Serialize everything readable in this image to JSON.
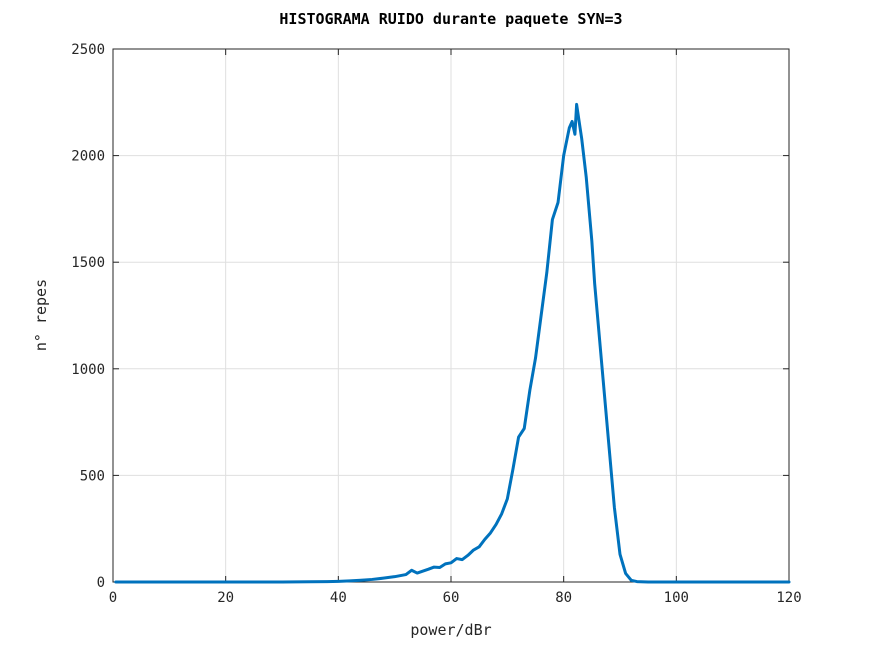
{
  "chart_data": {
    "type": "line",
    "title": "HISTOGRAMA RUIDO durante paquete SYN=3",
    "xlabel": "power/dBr",
    "ylabel": "n° repes",
    "xlim": [
      0,
      120
    ],
    "ylim": [
      0,
      2500
    ],
    "xticks": [
      "0",
      "20",
      "40",
      "60",
      "80",
      "100",
      "120"
    ],
    "yticks": [
      "0",
      "500",
      "1000",
      "1500",
      "2000",
      "2500"
    ],
    "grid": true,
    "series": [
      {
        "color": "#0072bd",
        "points": [
          [
            0.5,
            0
          ],
          [
            10,
            0
          ],
          [
            20,
            0
          ],
          [
            30,
            0
          ],
          [
            35,
            1
          ],
          [
            38,
            2
          ],
          [
            40,
            3
          ],
          [
            42,
            5
          ],
          [
            44,
            8
          ],
          [
            46,
            12
          ],
          [
            48,
            18
          ],
          [
            50,
            25
          ],
          [
            52,
            35
          ],
          [
            53,
            55
          ],
          [
            54,
            42
          ],
          [
            56,
            60
          ],
          [
            57,
            70
          ],
          [
            58,
            68
          ],
          [
            59,
            85
          ],
          [
            60,
            90
          ],
          [
            61,
            110
          ],
          [
            62,
            105
          ],
          [
            63,
            125
          ],
          [
            64,
            150
          ],
          [
            65,
            165
          ],
          [
            66,
            200
          ],
          [
            67,
            230
          ],
          [
            68,
            270
          ],
          [
            69,
            320
          ],
          [
            70,
            390
          ],
          [
            71,
            530
          ],
          [
            72,
            680
          ],
          [
            73,
            720
          ],
          [
            74,
            900
          ],
          [
            75,
            1050
          ],
          [
            76,
            1250
          ],
          [
            77,
            1450
          ],
          [
            78,
            1700
          ],
          [
            79,
            1780
          ],
          [
            80,
            2000
          ],
          [
            81,
            2130
          ],
          [
            81.5,
            2160
          ],
          [
            82,
            2100
          ],
          [
            82.3,
            2240
          ],
          [
            82.8,
            2150
          ],
          [
            83.2,
            2080
          ],
          [
            84,
            1900
          ],
          [
            85,
            1600
          ],
          [
            85.5,
            1400
          ],
          [
            86,
            1250
          ],
          [
            87,
            950
          ],
          [
            88,
            650
          ],
          [
            89,
            350
          ],
          [
            90,
            130
          ],
          [
            91,
            40
          ],
          [
            92,
            8
          ],
          [
            93,
            2
          ],
          [
            95,
            0
          ],
          [
            100,
            0
          ],
          [
            110,
            0
          ],
          [
            120,
            0
          ]
        ]
      }
    ]
  }
}
